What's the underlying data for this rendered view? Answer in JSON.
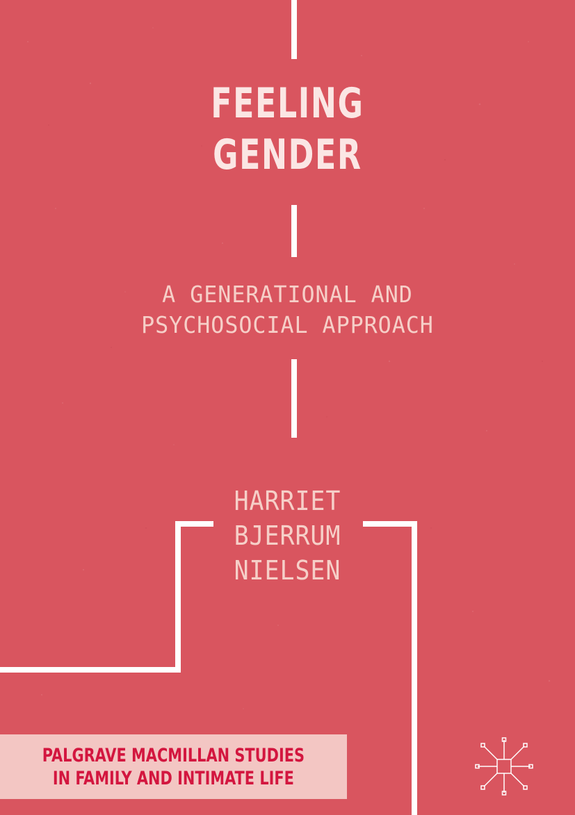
{
  "cover": {
    "background_color": "#d9555f",
    "line_color": "#ffffff",
    "title_lines": [
      "FEELING",
      "GENDER"
    ],
    "subtitle_lines": [
      "A GENERATIONAL AND",
      "PSYCHOSOCIAL APPROACH"
    ],
    "author_lines": [
      "HARRIET",
      "BJERRUM",
      "NIELSEN"
    ],
    "series_lines": [
      "PALGRAVE MACMILLAN STUDIES",
      "IN FAMILY AND INTIMATE LIFE"
    ],
    "series_box_color": "#f3c6c3",
    "series_text_color": "#d3163f",
    "publisher_logo": "palgrave-logo-icon"
  }
}
